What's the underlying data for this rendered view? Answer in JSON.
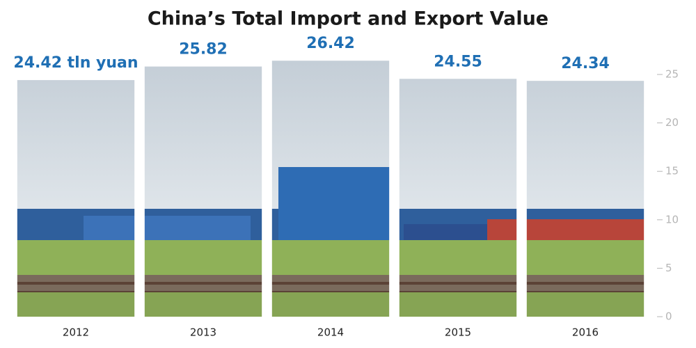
{
  "chart_data": {
    "type": "bar",
    "title": "China’s Total Import and Export Value",
    "categories": [
      "2012",
      "2013",
      "2014",
      "2015",
      "2016"
    ],
    "values": [
      24.42,
      25.82,
      26.42,
      24.55,
      24.34
    ],
    "value_labels": [
      "24.42 tln yuan",
      "25.82",
      "26.42",
      "24.55",
      "24.34"
    ],
    "ylim": [
      0,
      27
    ],
    "yticks": [
      0,
      5,
      10,
      15,
      20,
      25
    ],
    "grid": false
  }
}
